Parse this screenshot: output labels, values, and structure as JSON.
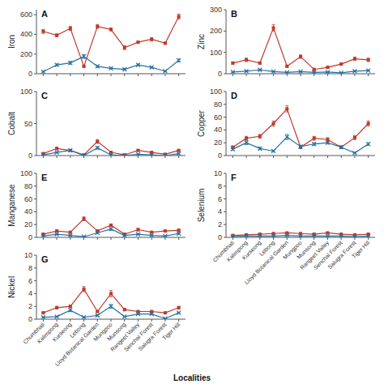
{
  "chart_data": [
    {
      "type": "line",
      "title": "A",
      "ylabel": "Iron",
      "tick_labels": "y",
      "grid": false,
      "categories": [
        "Chumbhati",
        "Kalimpong",
        "Kurseong",
        "Lebong",
        "Lloyd Botanical Garden",
        "Mungpoo",
        "Munsong",
        "Rangeet Valley",
        "Senchal Forest",
        "Salugra Forest",
        "Tiger Hill"
      ],
      "ylim": [
        0,
        650
      ],
      "yticks": [
        0,
        200,
        400,
        600
      ],
      "series": [
        {
          "color": "#c0392b",
          "marker": "square",
          "values": [
            430,
            390,
            460,
            75,
            480,
            450,
            265,
            320,
            350,
            310,
            580
          ],
          "errors": [
            20,
            15,
            20,
            10,
            20,
            15,
            20,
            10,
            15,
            10,
            25
          ]
        },
        {
          "color": "#2471a3",
          "marker": "x",
          "values": [
            20,
            90,
            110,
            175,
            75,
            55,
            45,
            90,
            65,
            25,
            135
          ],
          "errors": [
            5,
            10,
            15,
            20,
            10,
            8,
            8,
            10,
            8,
            5,
            15
          ]
        }
      ]
    },
    {
      "type": "line",
      "title": "B",
      "ylabel": "Zinc",
      "tick_labels": "y",
      "grid": false,
      "categories": [
        "Chumbhati",
        "Kalimpong",
        "Kurseong",
        "Lebong",
        "Lloyd Botanical Garden",
        "Mungpoo",
        "Munsong",
        "Rangeet Valley",
        "Senchal Forest",
        "Salugra Forest",
        "Tiger Hill"
      ],
      "ylim": [
        0,
        300
      ],
      "yticks": [
        0,
        100,
        200,
        300
      ],
      "series": [
        {
          "color": "#c0392b",
          "marker": "square",
          "values": [
            50,
            65,
            50,
            215,
            35,
            80,
            20,
            30,
            45,
            70,
            65
          ],
          "errors": [
            5,
            8,
            5,
            15,
            5,
            8,
            5,
            5,
            5,
            8,
            8
          ]
        },
        {
          "color": "#2471a3",
          "marker": "x",
          "values": [
            8,
            12,
            18,
            10,
            6,
            10,
            6,
            8,
            4,
            12,
            15
          ],
          "errors": [
            2,
            3,
            3,
            2,
            2,
            2,
            2,
            2,
            1,
            3,
            3
          ]
        }
      ]
    },
    {
      "type": "line",
      "title": "C",
      "ylabel": "Cobalt",
      "tick_labels": "y",
      "grid": false,
      "categories": [
        "Chumbhati",
        "Kalimpong",
        "Kurseong",
        "Lebong",
        "Lloyd Botanical Garden",
        "Mungpoo",
        "Munsong",
        "Rangeet Valley",
        "Senchal Forest",
        "Salugra Forest",
        "Tiger Hill"
      ],
      "ylim": [
        0,
        100
      ],
      "yticks": [
        0,
        50,
        100
      ],
      "series": [
        {
          "color": "#c0392b",
          "marker": "square",
          "values": [
            3,
            11,
            8,
            1,
            22,
            5,
            1,
            8,
            5,
            2,
            8
          ],
          "errors": [
            1,
            2,
            1,
            0,
            3,
            1,
            0,
            1,
            1,
            0,
            1
          ]
        },
        {
          "color": "#2471a3",
          "marker": "x",
          "values": [
            1,
            5,
            8,
            0,
            12,
            1,
            0,
            2,
            1,
            0,
            3
          ],
          "errors": [
            0,
            1,
            1,
            0,
            2,
            0,
            0,
            0,
            0,
            0,
            1
          ]
        }
      ]
    },
    {
      "type": "line",
      "title": "D",
      "ylabel": "Copper",
      "tick_labels": "y",
      "grid": false,
      "categories": [
        "Chumbhati",
        "Kalimpong",
        "Kurseong",
        "Lebong",
        "Lloyd Botanical Garden",
        "Mungpoo",
        "Munsong",
        "Rangeet Valley",
        "Senchal Forest",
        "Salugra Forest",
        "Tiger Hill"
      ],
      "ylim": [
        0,
        100
      ],
      "yticks": [
        0,
        20,
        40,
        60,
        80,
        100
      ],
      "series": [
        {
          "color": "#c0392b",
          "marker": "square",
          "values": [
            13,
            27,
            30,
            50,
            73,
            13,
            27,
            25,
            13,
            28,
            50
          ],
          "errors": [
            2,
            3,
            3,
            4,
            5,
            2,
            3,
            3,
            2,
            3,
            4
          ]
        },
        {
          "color": "#2471a3",
          "marker": "x",
          "values": [
            10,
            20,
            11,
            7,
            29,
            14,
            18,
            20,
            13,
            4,
            18
          ],
          "errors": [
            2,
            3,
            2,
            1,
            4,
            2,
            2,
            2,
            2,
            1,
            2
          ]
        }
      ]
    },
    {
      "type": "line",
      "title": "E",
      "ylabel": "Manganese",
      "tick_labels": "y",
      "grid": false,
      "categories": [
        "Chumbhati",
        "Kalimpong",
        "Kurseong",
        "Lebong",
        "Lloyd Botanical Garden",
        "Mungpoo",
        "Munsong",
        "Rangeet Valley",
        "Senchal Forest",
        "Salugra Forest",
        "Tiger Hill"
      ],
      "ylim": [
        0,
        100
      ],
      "yticks": [
        0,
        20,
        40,
        60,
        80,
        100
      ],
      "series": [
        {
          "color": "#c0392b",
          "marker": "square",
          "values": [
            5,
            10,
            8,
            29,
            10,
            19,
            5,
            12,
            8,
            10,
            11
          ],
          "errors": [
            1,
            2,
            1,
            3,
            2,
            2,
            1,
            2,
            1,
            1,
            2
          ]
        },
        {
          "color": "#2471a3",
          "marker": "x",
          "values": [
            2,
            5,
            3,
            1,
            7,
            13,
            3,
            5,
            3,
            2,
            6
          ],
          "errors": [
            0,
            1,
            1,
            0,
            1,
            2,
            1,
            1,
            1,
            0,
            1
          ]
        }
      ]
    },
    {
      "type": "line",
      "title": "F",
      "ylabel": "Selenium",
      "grid": false,
      "categories": [
        "Chumbhati",
        "Kalimpong",
        "Kurseong",
        "Lebong",
        "Lloyd Botanical Garden",
        "Mungpoo",
        "Munsong",
        "Rangeet Valley",
        "Senchal Forest",
        "Salugra Forest",
        "Tiger Hill"
      ],
      "ylim": [
        0,
        10
      ],
      "yticks": [
        0,
        2,
        4,
        6,
        8,
        10
      ],
      "series": [
        {
          "color": "#c0392b",
          "marker": "square",
          "values": [
            0.3,
            0.4,
            0.5,
            0.6,
            0.7,
            0.6,
            0.5,
            0.7,
            0.5,
            0.4,
            0.5
          ],
          "errors": [
            0.05,
            0.05,
            0.05,
            0.05,
            0.05,
            0.05,
            0.05,
            0.05,
            0.05,
            0.05,
            0.05
          ]
        },
        {
          "color": "#2471a3",
          "marker": "x",
          "values": [
            0.1,
            0.2,
            0.2,
            0.2,
            0.3,
            0.2,
            0.2,
            0.2,
            0.2,
            0.1,
            0.2
          ],
          "errors": [
            0.02,
            0.02,
            0.02,
            0.02,
            0.03,
            0.02,
            0.02,
            0.02,
            0.02,
            0.02,
            0.02
          ]
        }
      ]
    },
    {
      "type": "line",
      "title": "G",
      "ylabel": "Nickel",
      "xlabel": "Localities",
      "grid": false,
      "categories": [
        "Chumbhati",
        "Kalimpong",
        "Kurseong",
        "Lebong",
        "Lloyd Botanical Garden",
        "Mungpoo",
        "Munsong",
        "Rangeet Valley",
        "Senchal Forest",
        "Salugra Forest",
        "Tiger Hill"
      ],
      "ylim": [
        0,
        10
      ],
      "yticks": [
        0,
        2,
        4,
        6,
        8,
        10
      ],
      "series": [
        {
          "color": "#c0392b",
          "marker": "square",
          "values": [
            1.0,
            1.8,
            2.0,
            4.7,
            1.2,
            4.0,
            1.5,
            1.2,
            1.2,
            1.0,
            1.8
          ],
          "errors": [
            0.1,
            0.2,
            0.2,
            0.4,
            0.1,
            0.5,
            0.2,
            0.1,
            0.1,
            0.1,
            0.2
          ]
        },
        {
          "color": "#2471a3",
          "marker": "x",
          "values": [
            0.3,
            0.4,
            1.4,
            0.3,
            0.6,
            2.0,
            0.4,
            0.8,
            0.8,
            0.1,
            1.0
          ],
          "errors": [
            0.05,
            0.05,
            0.2,
            0.05,
            0.1,
            0.3,
            0.05,
            0.1,
            0.1,
            0.02,
            0.1
          ]
        }
      ]
    }
  ]
}
